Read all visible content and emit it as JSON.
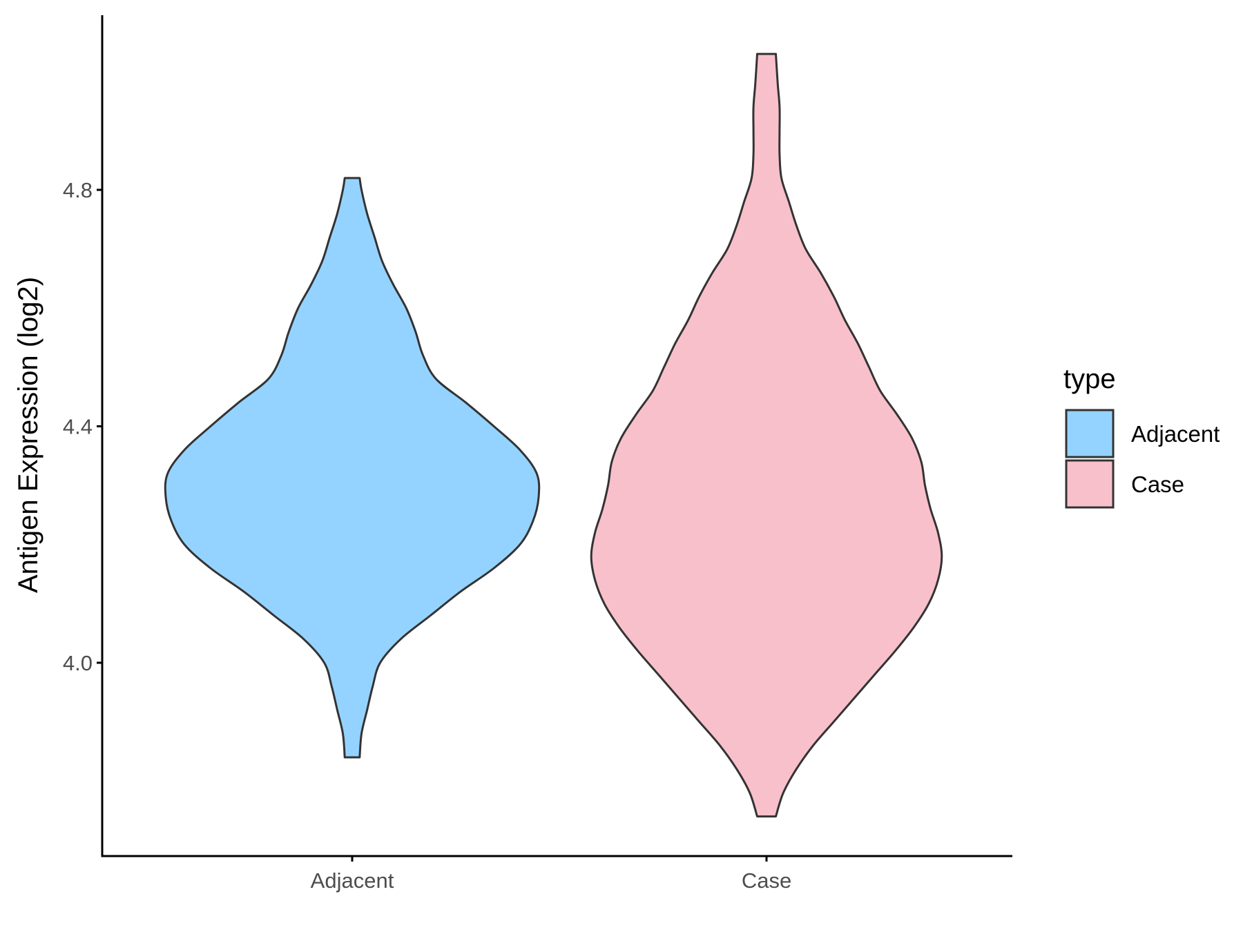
{
  "chart_data": {
    "type": "violin",
    "title": "",
    "xlabel": "",
    "ylabel": "Antigen Expression (log2)",
    "categories": [
      "Adjacent",
      "Case"
    ],
    "y_ticks": [
      "4.0",
      "4.4",
      "4.8"
    ],
    "ylim": [
      3.68,
      5.1
    ],
    "grid": false,
    "legend": {
      "title": "type",
      "position": "right",
      "entries": [
        "Adjacent",
        "Case"
      ]
    },
    "series": [
      {
        "name": "Adjacent",
        "color": "#94D3FF",
        "min": 3.84,
        "max": 4.82,
        "density": [
          [
            3.84,
            0.04
          ],
          [
            3.88,
            0.05
          ],
          [
            3.92,
            0.08
          ],
          [
            3.96,
            0.11
          ],
          [
            4.0,
            0.15
          ],
          [
            4.04,
            0.26
          ],
          [
            4.08,
            0.42
          ],
          [
            4.12,
            0.58
          ],
          [
            4.16,
            0.76
          ],
          [
            4.2,
            0.9
          ],
          [
            4.24,
            0.97
          ],
          [
            4.28,
            1.0
          ],
          [
            4.32,
            0.99
          ],
          [
            4.36,
            0.9
          ],
          [
            4.4,
            0.76
          ],
          [
            4.44,
            0.61
          ],
          [
            4.48,
            0.45
          ],
          [
            4.52,
            0.38
          ],
          [
            4.56,
            0.34
          ],
          [
            4.6,
            0.29
          ],
          [
            4.64,
            0.22
          ],
          [
            4.68,
            0.16
          ],
          [
            4.72,
            0.12
          ],
          [
            4.76,
            0.08
          ],
          [
            4.8,
            0.05
          ],
          [
            4.82,
            0.04
          ]
        ]
      },
      {
        "name": "Case",
        "color": "#F8C0CB",
        "min": 3.74,
        "max": 5.03,
        "density": [
          [
            3.74,
            0.05
          ],
          [
            3.78,
            0.09
          ],
          [
            3.82,
            0.16
          ],
          [
            3.86,
            0.25
          ],
          [
            3.9,
            0.36
          ],
          [
            3.94,
            0.47
          ],
          [
            3.98,
            0.58
          ],
          [
            4.02,
            0.69
          ],
          [
            4.06,
            0.79
          ],
          [
            4.1,
            0.87
          ],
          [
            4.14,
            0.92
          ],
          [
            4.18,
            0.94
          ],
          [
            4.22,
            0.92
          ],
          [
            4.26,
            0.88
          ],
          [
            4.3,
            0.85
          ],
          [
            4.34,
            0.83
          ],
          [
            4.38,
            0.78
          ],
          [
            4.42,
            0.7
          ],
          [
            4.46,
            0.61
          ],
          [
            4.5,
            0.55
          ],
          [
            4.54,
            0.49
          ],
          [
            4.58,
            0.42
          ],
          [
            4.62,
            0.36
          ],
          [
            4.66,
            0.29
          ],
          [
            4.7,
            0.21
          ],
          [
            4.74,
            0.16
          ],
          [
            4.78,
            0.12
          ],
          [
            4.82,
            0.08
          ],
          [
            4.86,
            0.07
          ],
          [
            4.9,
            0.07
          ],
          [
            4.94,
            0.07
          ],
          [
            4.98,
            0.06
          ],
          [
            5.03,
            0.05
          ]
        ]
      }
    ]
  }
}
